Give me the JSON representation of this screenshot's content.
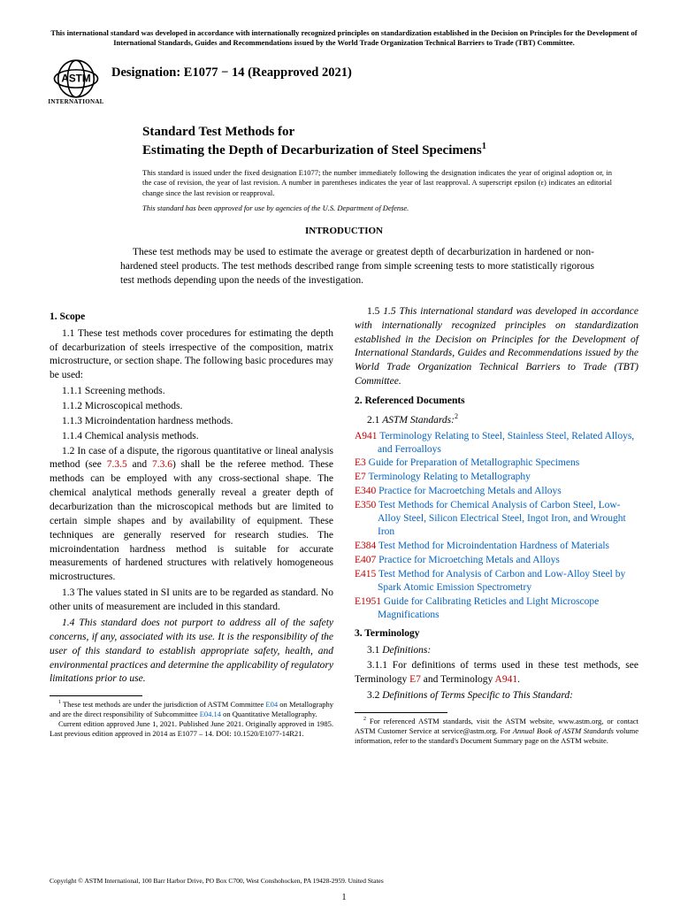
{
  "top_notice": "This international standard was developed in accordance with internationally recognized principles on standardization established in the Decision on Principles for the Development of International Standards, Guides and Recommendations issued by the World Trade Organization Technical Barriers to Trade (TBT) Committee.",
  "logo_label": "INTERNATIONAL",
  "designation": "Designation: E1077 − 14 (Reapproved 2021)",
  "title_lead": "Standard Test Methods for",
  "title_main": "Estimating the Depth of Decarburization of Steel Specimens",
  "issuance": "This standard is issued under the fixed designation E1077; the number immediately following the designation indicates the year of original adoption or, in the case of revision, the year of last revision. A number in parentheses indicates the year of last reapproval. A superscript epsilon (ε) indicates an editorial change since the last revision or reapproval.",
  "dod_note": "This standard has been approved for use by agencies of the U.S. Department of Defense.",
  "intro_heading": "INTRODUCTION",
  "intro_body": "These test methods may be used to estimate the average or greatest depth of decarburization in hardened or non-hardened steel products. The test methods described range from simple screening tests to more statistically rigorous test methods depending upon the needs of the investigation.",
  "sec1_head": "1. Scope",
  "sec1_1": "1.1 These test methods cover procedures for estimating the depth of decarburization of steels irrespective of the composition, matrix microstructure, or section shape. The following basic procedures may be used:",
  "sec1_1_1": "1.1.1 Screening methods.",
  "sec1_1_2": "1.1.2 Microscopical methods.",
  "sec1_1_3": "1.1.3 Microindentation hardness methods.",
  "sec1_1_4": "1.1.4 Chemical analysis methods.",
  "sec1_2_a": "1.2 In case of a dispute, the rigorous quantitative or lineal analysis method (see ",
  "sec1_2_link1": "7.3.5",
  "sec1_2_b": " and ",
  "sec1_2_link2": "7.3.6",
  "sec1_2_c": ") shall be the referee method. These methods can be employed with any cross-sectional shape. The chemical analytical methods generally reveal a greater depth of decarburization than the microscopical methods but are limited to certain simple shapes and by availability of equipment. These techniques are generally reserved for research studies. The microindentation hardness method is suitable for accurate measurements of hardened structures with relatively homogeneous microstructures.",
  "sec1_3": "1.3 The values stated in SI units are to be regarded as standard. No other units of measurement are included in this standard.",
  "sec1_4": "1.4 This standard does not purport to address all of the safety concerns, if any, associated with its use. It is the responsibility of the user of this standard to establish appropriate safety, health, and environmental practices and determine the applicability of regulatory limitations prior to use.",
  "sec1_5": "1.5 This international standard was developed in accordance with internationally recognized principles on standardization established in the Decision on Principles for the Development of International Standards, Guides and Recommendations issued by the World Trade Organization Technical Barriers to Trade (TBT) Committee.",
  "sec2_head": "2. Referenced Documents",
  "sec2_1": "2.1 ASTM Standards:",
  "refs": [
    {
      "code": "A941",
      "text": "Terminology Relating to Steel, Stainless Steel, Related Alloys, and Ferroalloys"
    },
    {
      "code": "E3",
      "text": "Guide for Preparation of Metallographic Specimens"
    },
    {
      "code": "E7",
      "text": "Terminology Relating to Metallography"
    },
    {
      "code": "E340",
      "text": "Practice for Macroetching Metals and Alloys"
    },
    {
      "code": "E350",
      "text": "Test Methods for Chemical Analysis of Carbon Steel, Low-Alloy Steel, Silicon Electrical Steel, Ingot Iron, and Wrought Iron"
    },
    {
      "code": "E384",
      "text": "Test Method for Microindentation Hardness of Materials"
    },
    {
      "code": "E407",
      "text": "Practice for Microetching Metals and Alloys"
    },
    {
      "code": "E415",
      "text": "Test Method for Analysis of Carbon and Low-Alloy Steel by Spark Atomic Emission Spectrometry"
    },
    {
      "code": "E1951",
      "text": "Guide for Calibrating Reticles and Light Microscope Magnifications"
    }
  ],
  "sec3_head": "3. Terminology",
  "sec3_1": "3.1 Definitions:",
  "sec3_1_1_a": "3.1.1 For definitions of terms used in these test methods, see Terminology ",
  "sec3_1_1_e7": "E7",
  "sec3_1_1_b": " and Terminology ",
  "sec3_1_1_a941": "A941",
  "sec3_1_1_c": ".",
  "sec3_2": "3.2 Definitions of Terms Specific to This Standard:",
  "fn1_a": " These test methods are under the jurisdiction of ASTM Committee ",
  "fn1_link1": "E04",
  "fn1_b": " on Metallography and are the direct responsibility of Subcommittee ",
  "fn1_link2": "E04.14",
  "fn1_c": " on Quantitative Metallography.",
  "fn1_p2": "Current edition approved June 1, 2021. Published June 2021. Originally approved in 1985. Last previous edition approved in 2014 as E1077 – 14. DOI: 10.1520/E1077-14R21.",
  "fn2": " For referenced ASTM standards, visit the ASTM website, www.astm.org, or contact ASTM Customer Service at service@astm.org. For Annual Book of ASTM Standards volume information, refer to the standard's Document Summary page on the ASTM website.",
  "fn2_ital1": "Annual Book of ASTM Standards",
  "copyright": "Copyright © ASTM International, 100 Barr Harbor Drive, PO Box C700, West Conshohocken, PA 19428-2959. United States",
  "page_number": "1",
  "colors": {
    "link": "#0563c1",
    "ref": "#c00000",
    "text": "#000000",
    "bg": "#ffffff"
  }
}
